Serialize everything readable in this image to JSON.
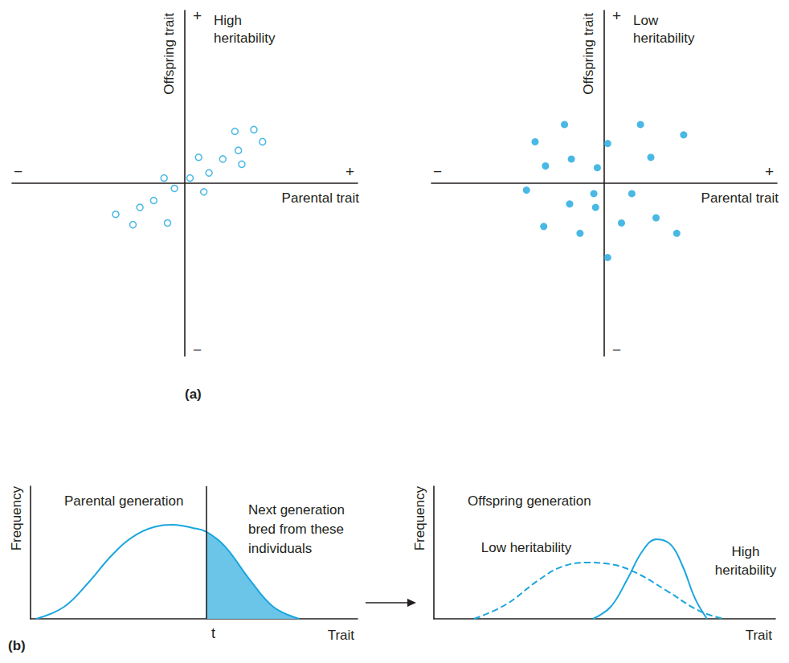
{
  "chart_data": [
    {
      "type": "scatter",
      "panel": "(a)",
      "title": "High heritability",
      "xlabel": "Parental trait",
      "ylabel": "Offspring trait",
      "x_end_labels": [
        "−",
        "+"
      ],
      "y_end_labels": [
        "−",
        "+"
      ],
      "x": [
        -4.0,
        -3.0,
        -2.6,
        -1.8,
        -1.0,
        -1.2,
        -0.6,
        0.3,
        1.1,
        0.8,
        1.4,
        2.2,
        3.1,
        3.3,
        2.9,
        4.0,
        4.5
      ],
      "y": [
        -1.8,
        -2.4,
        -1.4,
        -1.0,
        -2.3,
        0.3,
        -0.3,
        0.3,
        -0.5,
        1.5,
        0.6,
        1.4,
        1.9,
        1.1,
        3.0,
        3.1,
        2.4
      ],
      "marker": "open circle",
      "color": "#1ba6dd",
      "xlim": [
        -10,
        10
      ],
      "ylim": [
        -10,
        10
      ],
      "tick_labels": false,
      "grid": false
    },
    {
      "type": "scatter",
      "title": "Low heritability",
      "xlabel": "Parental trait",
      "ylabel": "Offspring trait",
      "x_end_labels": [
        "−",
        "+"
      ],
      "y_end_labels": [
        "−",
        "+"
      ],
      "x": [
        -2.3,
        -4.0,
        -3.4,
        -1.9,
        -0.4,
        0.2,
        2.1,
        2.7,
        4.6,
        -4.5,
        -0.6,
        -0.5,
        1.6,
        -2.0,
        -3.5,
        -1.4,
        1.0,
        3.0,
        4.2,
        0.2
      ],
      "y": [
        3.4,
        2.4,
        1.0,
        1.4,
        0.9,
        2.3,
        3.4,
        1.5,
        2.8,
        -0.4,
        -0.6,
        -1.4,
        -0.6,
        -1.2,
        -2.5,
        -2.9,
        -2.3,
        -2.0,
        -2.9,
        -4.3
      ],
      "marker": "filled circle",
      "color": "#1ba6dd",
      "xlim": [
        -10,
        10
      ],
      "ylim": [
        -10,
        10
      ],
      "tick_labels": false,
      "grid": false
    },
    {
      "type": "line",
      "panel": "(b)",
      "title": "Parental generation",
      "xlabel": "Trait",
      "ylabel": "Frequency",
      "series": [
        {
          "x": [
            1.7,
            10.3,
            17.7,
            25.1,
            32.4,
            39.8,
            43.5,
            49.6,
            53.8,
            59.5,
            66.8,
            74.2,
            82.1
          ],
          "values": [
            0,
            9.1,
            27.3,
            48.5,
            63.6,
            70.3,
            70.9,
            68.5,
            65.5,
            54.5,
            30.3,
            9.1,
            0
          ],
          "color": "#1ba6dd",
          "line_style": "solid"
        }
      ],
      "threshold": {
        "value": 53.8,
        "label": "t"
      },
      "annotation": "Next generation bred from these individuals",
      "xlim": [
        0,
        100
      ],
      "ylim": [
        0,
        100
      ],
      "tick_labels": false,
      "grid": false
    },
    {
      "type": "line",
      "title": "Offspring generation",
      "xlabel": "Trait",
      "ylabel": "Frequency",
      "series": [
        {
          "name": "Low heritability",
          "x": [
            11.8,
            21.2,
            30.6,
            37.6,
            44.7,
            51.8,
            58.8,
            68.2,
            77.6,
            84.7
          ],
          "values": [
            0,
            10.9,
            29.1,
            39.4,
            42.4,
            41.2,
            35.2,
            21.2,
            6.1,
            0
          ],
          "color": "#1ba6dd",
          "line_style": "dashed"
        },
        {
          "name": "High heritability",
          "x": [
            46.6,
            51.8,
            56.5,
            61.2,
            65.2,
            69.4,
            72.9,
            76.5,
            80.0
          ],
          "values": [
            0,
            9.1,
            29.1,
            51.5,
            60.0,
            55.8,
            39.4,
            15.2,
            0
          ],
          "color": "#1ba6dd",
          "line_style": "solid"
        }
      ],
      "xlim": [
        0,
        100
      ],
      "ylim": [
        0,
        100
      ],
      "tick_labels": false,
      "grid": false
    }
  ]
}
